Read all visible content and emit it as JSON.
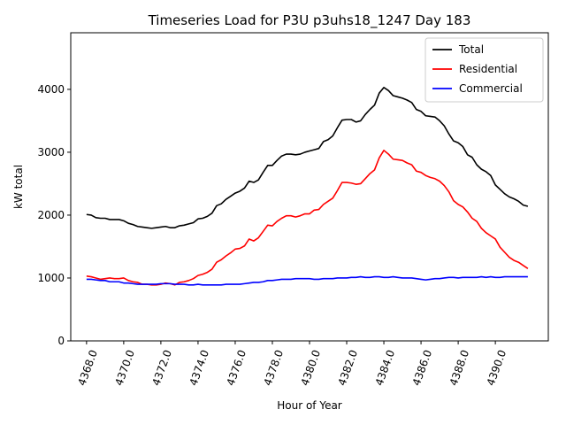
{
  "chart_data": {
    "type": "line",
    "title": "Timeseries Load for P3U p3uhs18_1247  Day 183",
    "xlabel": "Hour of Year",
    "ylabel": "kW total",
    "xlim": [
      4367.15,
      4392.85
    ],
    "ylim": [
      0,
      4900
    ],
    "xticks": [
      4368,
      4370,
      4372,
      4374,
      4376,
      4378,
      4380,
      4382,
      4384,
      4386,
      4388,
      4390
    ],
    "xtick_labels": [
      "4368.0",
      "4370.0",
      "4372.0",
      "4374.0",
      "4376.0",
      "4378.0",
      "4380.0",
      "4382.0",
      "4384.0",
      "4386.0",
      "4388.0",
      "4390.0"
    ],
    "yticks": [
      0,
      1000,
      2000,
      3000,
      4000
    ],
    "ytick_labels": [
      "0",
      "1000",
      "2000",
      "3000",
      "4000"
    ],
    "legend_position": "top-right",
    "grid": false,
    "x": [
      4368.0,
      4368.25,
      4368.5,
      4368.75,
      4369.0,
      4369.25,
      4369.5,
      4369.75,
      4370.0,
      4370.25,
      4370.5,
      4370.75,
      4371.0,
      4371.25,
      4371.5,
      4371.75,
      4372.0,
      4372.25,
      4372.5,
      4372.75,
      4373.0,
      4373.25,
      4373.5,
      4373.75,
      4374.0,
      4374.25,
      4374.5,
      4374.75,
      4375.0,
      4375.25,
      4375.5,
      4375.75,
      4376.0,
      4376.25,
      4376.5,
      4376.75,
      4377.0,
      4377.25,
      4377.5,
      4377.75,
      4378.0,
      4378.25,
      4378.5,
      4378.75,
      4379.0,
      4379.25,
      4379.5,
      4379.75,
      4380.0,
      4380.25,
      4380.5,
      4380.75,
      4381.0,
      4381.25,
      4381.5,
      4381.75,
      4382.0,
      4382.25,
      4382.5,
      4382.75,
      4383.0,
      4383.25,
      4383.5,
      4383.75,
      4384.0,
      4384.25,
      4384.5,
      4384.75,
      4385.0,
      4385.25,
      4385.5,
      4385.75,
      4386.0,
      4386.25,
      4386.5,
      4386.75,
      4387.0,
      4387.25,
      4387.5,
      4387.75,
      4388.0,
      4388.25,
      4388.5,
      4388.75,
      4389.0,
      4389.25,
      4389.5,
      4389.75,
      4390.0,
      4390.25,
      4390.5,
      4390.75,
      4391.0,
      4391.25,
      4391.5,
      4391.75
    ],
    "series": [
      {
        "name": "Total",
        "color": "#000000",
        "values": [
          2010,
          2000,
          1960,
          1950,
          1950,
          1930,
          1930,
          1930,
          1910,
          1870,
          1850,
          1820,
          1810,
          1800,
          1790,
          1800,
          1810,
          1820,
          1800,
          1800,
          1830,
          1840,
          1860,
          1880,
          1940,
          1950,
          1980,
          2030,
          2150,
          2180,
          2250,
          2300,
          2350,
          2380,
          2430,
          2540,
          2520,
          2560,
          2680,
          2790,
          2790,
          2870,
          2940,
          2970,
          2970,
          2960,
          2970,
          3000,
          3020,
          3040,
          3060,
          3170,
          3200,
          3260,
          3390,
          3510,
          3520,
          3520,
          3480,
          3500,
          3600,
          3680,
          3750,
          3940,
          4030,
          3980,
          3900,
          3880,
          3860,
          3830,
          3790,
          3680,
          3650,
          3580,
          3570,
          3560,
          3500,
          3420,
          3290,
          3180,
          3150,
          3090,
          2960,
          2920,
          2800,
          2730,
          2690,
          2630,
          2480,
          2410,
          2340,
          2290,
          2260,
          2220,
          2160,
          2140
        ]
      },
      {
        "name": "Residential",
        "color": "#ff0000",
        "values": [
          1030,
          1020,
          1000,
          980,
          990,
          1000,
          990,
          990,
          1000,
          960,
          940,
          930,
          900,
          900,
          890,
          890,
          900,
          920,
          910,
          890,
          930,
          940,
          960,
          990,
          1040,
          1060,
          1090,
          1140,
          1250,
          1290,
          1350,
          1400,
          1460,
          1470,
          1510,
          1620,
          1590,
          1640,
          1740,
          1840,
          1830,
          1900,
          1950,
          1990,
          1990,
          1970,
          1990,
          2020,
          2020,
          2080,
          2090,
          2170,
          2220,
          2270,
          2390,
          2520,
          2520,
          2510,
          2490,
          2500,
          2580,
          2660,
          2720,
          2910,
          3030,
          2970,
          2890,
          2880,
          2870,
          2830,
          2800,
          2700,
          2680,
          2630,
          2600,
          2580,
          2540,
          2470,
          2370,
          2230,
          2170,
          2130,
          2050,
          1950,
          1900,
          1790,
          1720,
          1670,
          1620,
          1490,
          1410,
          1330,
          1280,
          1250,
          1200,
          1150
        ]
      },
      {
        "name": "Commercial",
        "color": "#0000ff",
        "values": [
          980,
          980,
          970,
          960,
          960,
          940,
          940,
          940,
          920,
          920,
          910,
          900,
          900,
          900,
          900,
          900,
          910,
          910,
          910,
          900,
          900,
          900,
          890,
          890,
          900,
          890,
          890,
          890,
          890,
          890,
          900,
          900,
          900,
          900,
          910,
          920,
          930,
          930,
          940,
          960,
          960,
          970,
          980,
          980,
          980,
          990,
          990,
          990,
          990,
          980,
          980,
          990,
          990,
          990,
          1000,
          1000,
          1000,
          1010,
          1010,
          1020,
          1010,
          1010,
          1020,
          1020,
          1010,
          1010,
          1020,
          1010,
          1000,
          1000,
          1000,
          990,
          980,
          970,
          980,
          990,
          990,
          1000,
          1010,
          1010,
          1000,
          1010,
          1010,
          1010,
          1010,
          1020,
          1010,
          1020,
          1010,
          1010,
          1020,
          1020,
          1020,
          1020,
          1020,
          1020
        ]
      }
    ]
  }
}
